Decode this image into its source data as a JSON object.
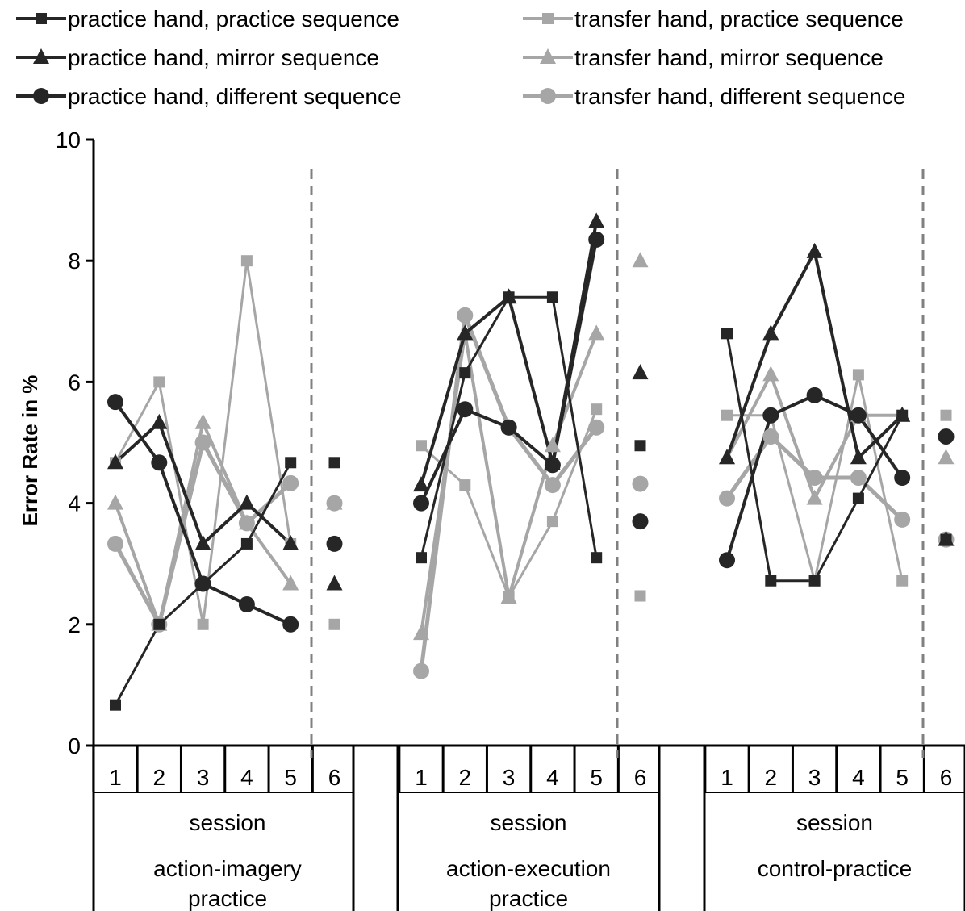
{
  "chart_data": {
    "type": "line",
    "ylabel": "Error Rate in %",
    "ylim": [
      0,
      10
    ],
    "yticks": [
      0,
      2,
      4,
      6,
      8,
      10
    ],
    "sessions": [
      "1",
      "2",
      "3",
      "4",
      "5",
      "6"
    ],
    "session_label": "session",
    "legend_placement": "top",
    "groups": [
      {
        "label": "action-imagery practice",
        "lines": [
          "action-imagery",
          "practice"
        ]
      },
      {
        "label": "action-execution practice",
        "lines": [
          "action-execution",
          "practice"
        ]
      },
      {
        "label": "control-practice",
        "lines": [
          "control-practice"
        ]
      }
    ],
    "series": [
      {
        "name": "practice hand, practice sequence",
        "color": "#262626",
        "marker": "square",
        "width": 3,
        "values": [
          [
            0.67,
            2.0,
            2.67,
            3.33,
            4.67,
            4.67
          ],
          [
            3.1,
            6.15,
            7.4,
            7.4,
            3.1,
            4.95
          ],
          [
            6.8,
            2.72,
            2.72,
            4.08,
            5.45,
            3.4
          ]
        ]
      },
      {
        "name": "practice hand, mirror sequence",
        "color": "#262626",
        "marker": "triangle",
        "width": 4,
        "values": [
          [
            4.67,
            5.33,
            3.33,
            4.0,
            3.33,
            2.67
          ],
          [
            4.3,
            6.8,
            7.4,
            4.65,
            8.65,
            6.15
          ],
          [
            4.75,
            6.8,
            8.15,
            4.75,
            5.45,
            3.4
          ]
        ]
      },
      {
        "name": "practice hand, different sequence",
        "color": "#262626",
        "marker": "circle",
        "width": 4,
        "values": [
          [
            5.67,
            4.67,
            2.67,
            2.33,
            2.0,
            3.33
          ],
          [
            4.0,
            5.55,
            5.25,
            4.63,
            8.35,
            3.7
          ],
          [
            3.06,
            5.45,
            5.78,
            5.45,
            4.42,
            5.1
          ]
        ]
      },
      {
        "name": "transfer hand, practice sequence",
        "color": "#a6a6a6",
        "marker": "square",
        "width": 3,
        "values": [
          [
            4.67,
            6.0,
            2.0,
            8.0,
            3.33,
            2.0
          ],
          [
            4.95,
            4.3,
            2.45,
            3.7,
            5.55,
            2.47
          ],
          [
            5.45,
            5.45,
            2.72,
            6.12,
            2.72,
            5.45
          ]
        ]
      },
      {
        "name": "transfer hand, mirror sequence",
        "color": "#a6a6a6",
        "marker": "triangle",
        "width": 4,
        "values": [
          [
            4.0,
            2.0,
            5.33,
            3.67,
            2.67,
            4.0
          ],
          [
            1.85,
            6.8,
            2.45,
            4.95,
            6.8,
            8.0
          ],
          [
            4.75,
            6.12,
            4.08,
            5.45,
            5.45,
            4.75
          ]
        ]
      },
      {
        "name": "transfer hand, different sequence",
        "color": "#a6a6a6",
        "marker": "circle",
        "width": 5,
        "values": [
          [
            3.33,
            2.0,
            5.0,
            3.67,
            4.33,
            4.0
          ],
          [
            1.23,
            7.1,
            5.25,
            4.3,
            5.25,
            4.32
          ],
          [
            4.08,
            5.1,
            4.42,
            4.42,
            3.73,
            3.4
          ]
        ]
      }
    ]
  }
}
